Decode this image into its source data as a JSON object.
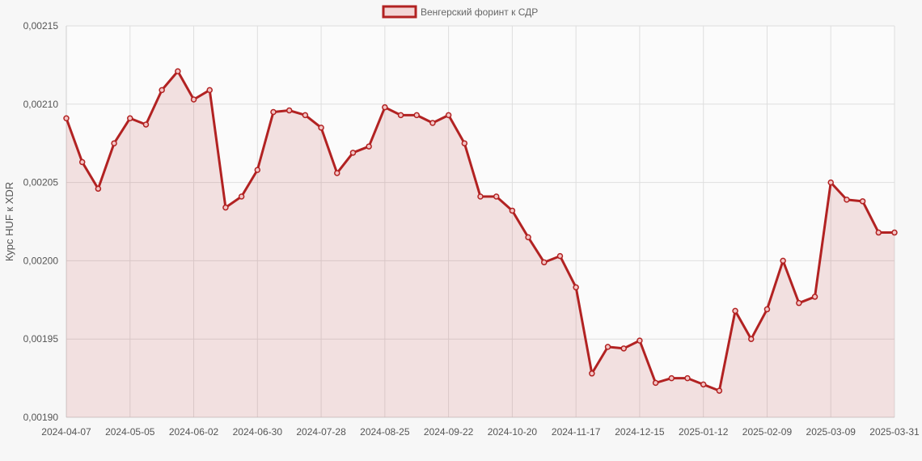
{
  "chart_data": {
    "type": "line",
    "series": [
      {
        "name": "Венгерский форинт к СДР",
        "color": "#b22222",
        "fill_color": "rgba(178,34,34,0.12)",
        "values": [
          0.002091,
          0.002063,
          0.002046,
          0.002075,
          0.002091,
          0.002087,
          0.002109,
          0.002121,
          0.002103,
          0.002109,
          0.002034,
          0.002041,
          0.002058,
          0.002095,
          0.002096,
          0.002093,
          0.002085,
          0.002056,
          0.002069,
          0.002073,
          0.002098,
          0.002093,
          0.002093,
          0.002088,
          0.002093,
          0.002075,
          0.002041,
          0.002041,
          0.002032,
          0.002015,
          0.001999,
          0.002003,
          0.001983,
          0.001928,
          0.001945,
          0.001944,
          0.001949,
          0.001922,
          0.001925,
          0.001925,
          0.001921,
          0.001917,
          0.001968,
          0.00195,
          0.001969,
          0.002,
          0.001973,
          0.001977,
          0.00205,
          0.002039,
          0.002038,
          0.002018,
          0.002018
        ]
      }
    ],
    "x_tick_labels": [
      "2024-04-07",
      "2024-05-05",
      "2024-06-02",
      "2024-06-30",
      "2024-07-28",
      "2024-08-25",
      "2024-09-22",
      "2024-10-20",
      "2024-11-17",
      "2024-12-15",
      "2025-01-12",
      "2025-02-09",
      "2025-03-09",
      "2025-03-31"
    ],
    "y_tick_labels": [
      "0,00190",
      "0,00195",
      "0,00200",
      "0,00205",
      "0,00210",
      "0,00215"
    ],
    "ylabel": "Курс HUF к XDR",
    "ylim": [
      0.0019,
      0.00215
    ],
    "grid": true,
    "legend_position": "top"
  }
}
